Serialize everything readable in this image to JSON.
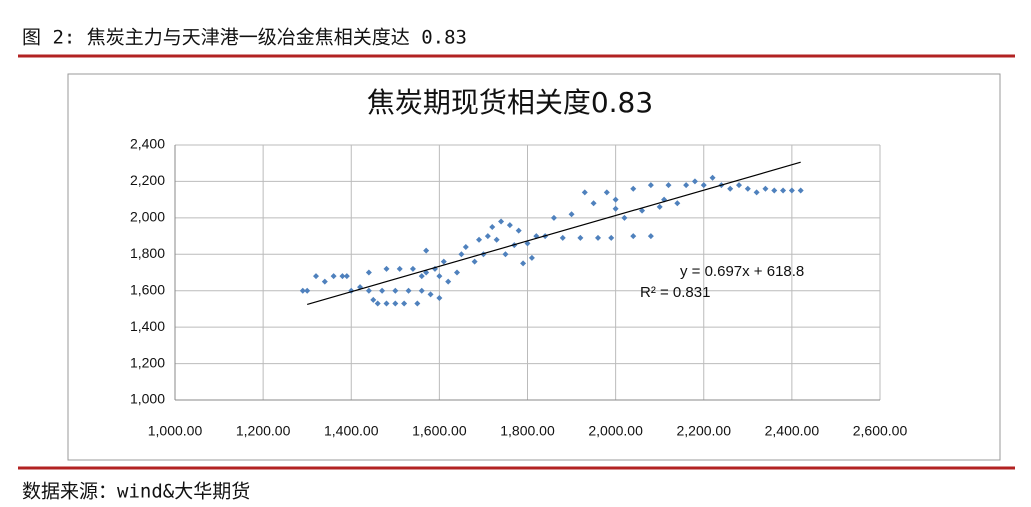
{
  "header": {
    "title": "图 2: 焦炭主力与天津港一级冶金焦相关度达 0.83"
  },
  "chart_data": {
    "type": "scatter",
    "title": "焦炭期现货相关度0.83",
    "color": "#4f81bd",
    "grid": true,
    "x": [
      1290,
      1300,
      1320,
      1340,
      1360,
      1380,
      1390,
      1400,
      1420,
      1440,
      1440,
      1450,
      1460,
      1470,
      1480,
      1480,
      1500,
      1500,
      1510,
      1520,
      1530,
      1540,
      1550,
      1560,
      1560,
      1570,
      1570,
      1580,
      1590,
      1600,
      1600,
      1610,
      1620,
      1640,
      1650,
      1660,
      1680,
      1690,
      1700,
      1710,
      1720,
      1730,
      1740,
      1750,
      1760,
      1770,
      1780,
      1790,
      1800,
      1810,
      1820,
      1840,
      1860,
      1880,
      1900,
      1920,
      1930,
      1950,
      1960,
      1980,
      1990,
      2000,
      2000,
      2020,
      2040,
      2040,
      2060,
      2080,
      2080,
      2100,
      2110,
      2120,
      2140,
      2160,
      2180,
      2200,
      2220,
      2240,
      2260,
      2280,
      2300,
      2320,
      2340,
      2360,
      2380,
      2400,
      2420
    ],
    "y": [
      1600,
      1600,
      1680,
      1650,
      1680,
      1680,
      1680,
      1600,
      1620,
      1600,
      1700,
      1550,
      1530,
      1600,
      1530,
      1720,
      1530,
      1600,
      1720,
      1530,
      1600,
      1720,
      1530,
      1600,
      1680,
      1700,
      1820,
      1580,
      1720,
      1560,
      1680,
      1760,
      1650,
      1700,
      1800,
      1840,
      1760,
      1880,
      1800,
      1900,
      1950,
      1880,
      1980,
      1800,
      1960,
      1850,
      1930,
      1750,
      1860,
      1780,
      1900,
      1900,
      2000,
      1890,
      2020,
      1890,
      2140,
      2080,
      1890,
      2140,
      1890,
      2100,
      2050,
      2000,
      2160,
      1900,
      2040,
      2180,
      1900,
      2060,
      2100,
      2180,
      2080,
      2180,
      2200,
      2180,
      2220,
      2180,
      2160,
      2180,
      2160,
      2140,
      2160,
      2150,
      2150,
      2150,
      2150
    ],
    "xlim": [
      1000,
      2600
    ],
    "xticks": [
      {
        "value": 1000,
        "label": "1,000.00"
      },
      {
        "value": 1200,
        "label": "1,200.00"
      },
      {
        "value": 1400,
        "label": "1,400.00"
      },
      {
        "value": 1600,
        "label": "1,600.00"
      },
      {
        "value": 1800,
        "label": "1,800.00"
      },
      {
        "value": 2000,
        "label": "2,000.00"
      },
      {
        "value": 2200,
        "label": "2,200.00"
      },
      {
        "value": 2400,
        "label": "2,400.00"
      },
      {
        "value": 2600,
        "label": "2,600.00"
      }
    ],
    "ylim": [
      1000,
      2400
    ],
    "yticks": [
      {
        "value": 1000,
        "label": "1,000"
      },
      {
        "value": 1200,
        "label": "1,200"
      },
      {
        "value": 1400,
        "label": "1,400"
      },
      {
        "value": 1600,
        "label": "1,600"
      },
      {
        "value": 1800,
        "label": "1,800"
      },
      {
        "value": 2000,
        "label": "2,000"
      },
      {
        "value": 2200,
        "label": "2,200"
      },
      {
        "value": 2400,
        "label": "2,400"
      }
    ],
    "trendline": {
      "equation": "y = 0.697x + 618.8",
      "r2": "R² = 0.831",
      "slope": 0.697,
      "intercept": 618.8,
      "x": [
        1300,
        2420
      ]
    }
  },
  "footer": {
    "source": "数据来源：wind&大华期货"
  }
}
